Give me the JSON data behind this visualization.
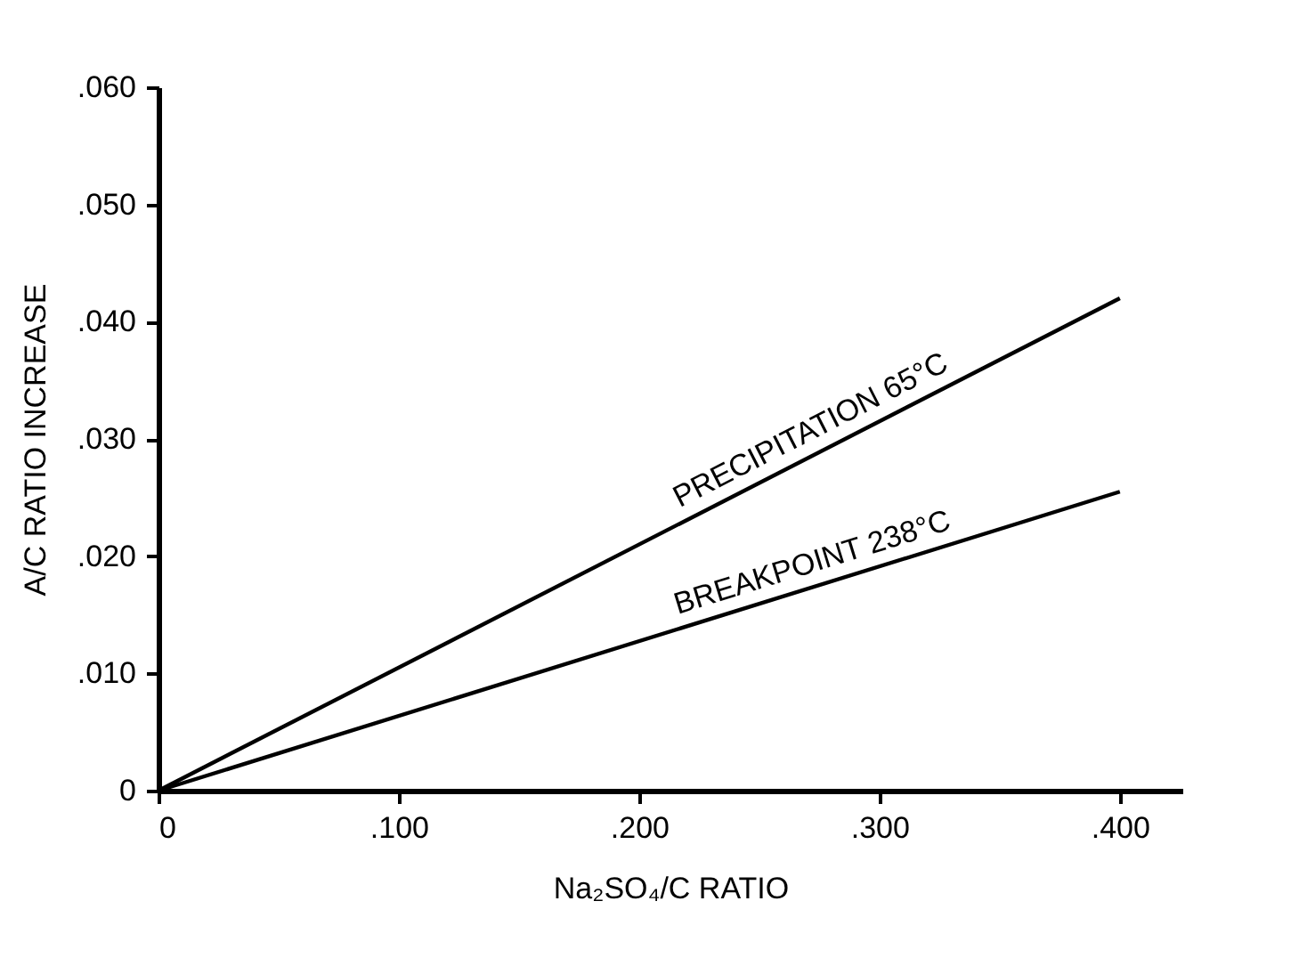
{
  "chart_data": {
    "type": "line",
    "xlabel": "Na₂SO₄/C RATIO",
    "ylabel": "A/C RATIO INCREASE",
    "x": [
      0,
      0.4
    ],
    "series": [
      {
        "name": "PRECIPITATION 65°C",
        "color": "#000000",
        "values": [
          0,
          0.042
        ]
      },
      {
        "name": "BREAKPOINT 238°C",
        "color": "#000000",
        "values": [
          0,
          0.0255
        ]
      }
    ],
    "xlim": [
      0,
      0.426
    ],
    "ylim": [
      0,
      0.06
    ],
    "xticks": [
      0,
      {
        "value": 0.1,
        "label": ".100"
      },
      {
        "value": 0.2,
        "label": ".200"
      },
      {
        "value": 0.3,
        "label": ".300"
      },
      {
        "value": 0.4,
        "label": ".400"
      }
    ],
    "yticks": [
      0,
      {
        "value": 0.01,
        "label": ".010"
      },
      {
        "value": 0.02,
        "label": ".020"
      },
      {
        "value": 0.03,
        "label": ".030"
      },
      {
        "value": 0.04,
        "label": ".040"
      },
      {
        "value": 0.05,
        "label": ".050"
      },
      {
        "value": 0.06,
        "label": ".060"
      }
    ],
    "grid": false,
    "legend": false,
    "marker": "none",
    "line_style": "solid"
  }
}
